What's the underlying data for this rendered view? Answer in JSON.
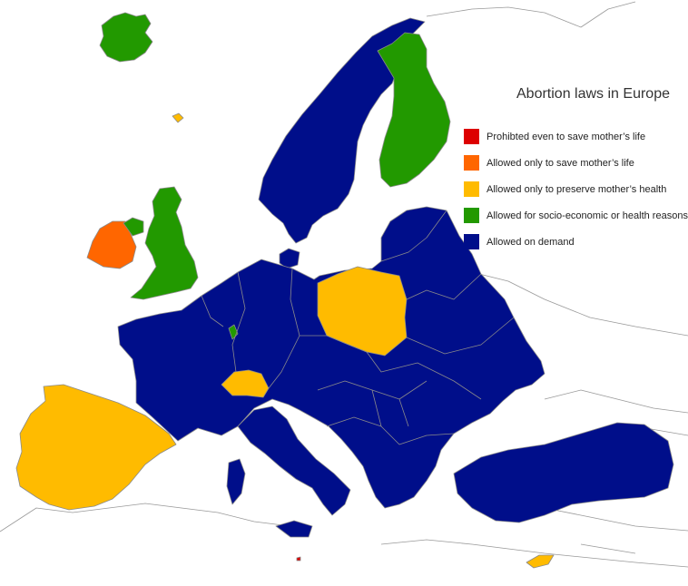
{
  "map": {
    "title": "Abortion laws in Europe",
    "colors": {
      "prohibited": "#dd0000",
      "life": "#ff6600",
      "health": "#ffbb00",
      "socio": "#229900",
      "demand": "#000e8a",
      "border": "#8a8a8a",
      "outline": "#999999"
    },
    "legend": [
      {
        "key": "prohibited",
        "label": "Prohibted even to save mother’s life",
        "color": "#dd0000"
      },
      {
        "key": "life",
        "label": "Allowed only to save mother’s life",
        "color": "#ff6600"
      },
      {
        "key": "health",
        "label": "Allowed only to preserve mother’s health",
        "color": "#ffbb00"
      },
      {
        "key": "socio",
        "label": "Allowed for socio-economic or health reasons",
        "color": "#229900"
      },
      {
        "key": "demand",
        "label": "Allowed on demand",
        "color": "#000e8a"
      }
    ],
    "regions": {
      "iceland": "socio",
      "finland": "socio",
      "united-kingdom": "socio",
      "northern-ireland": "socio",
      "luxembourg": "socio",
      "ireland": "life",
      "poland": "health",
      "switzerland": "health",
      "iberia": "health",
      "cyprus": "health",
      "faroe-islands": "health",
      "malta": "prohibited",
      "scandinavia": "demand",
      "mainland-europe": "demand",
      "italy": "demand",
      "turkey": "demand"
    }
  }
}
